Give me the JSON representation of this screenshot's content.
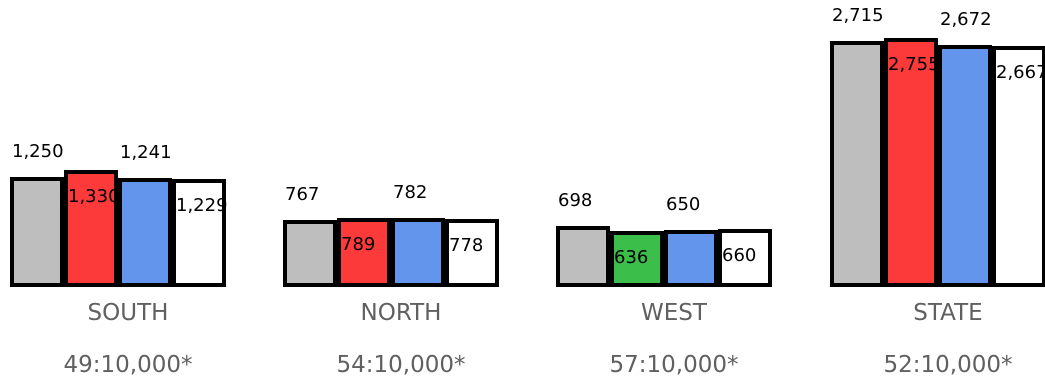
{
  "colors": {
    "grey": "#bebebe",
    "red": "#fc3a3a",
    "blue": "#6495ed",
    "white": "#ffffff",
    "green": "#3cbf4a"
  },
  "chart_data": {
    "type": "bar",
    "grid": false,
    "legend": "none",
    "groups": [
      {
        "name": "SOUTH",
        "ratio": "49:10,000*",
        "bars": [
          {
            "value": 1250,
            "label": "1,250",
            "color": "grey"
          },
          {
            "value": 1330,
            "label": "1,330",
            "color": "red"
          },
          {
            "value": 1241,
            "label": "1,241",
            "color": "blue"
          },
          {
            "value": 1229,
            "label": "1,229",
            "color": "white"
          }
        ]
      },
      {
        "name": "NORTH",
        "ratio": "54:10,000*",
        "bars": [
          {
            "value": 767,
            "label": "767",
            "color": "grey"
          },
          {
            "value": 789,
            "label": "789",
            "color": "red"
          },
          {
            "value": 782,
            "label": "782",
            "color": "blue"
          },
          {
            "value": 778,
            "label": "778",
            "color": "white"
          }
        ]
      },
      {
        "name": "WEST",
        "ratio": "57:10,000*",
        "bars": [
          {
            "value": 698,
            "label": "698",
            "color": "grey"
          },
          {
            "value": 636,
            "label": "636",
            "color": "green"
          },
          {
            "value": 650,
            "label": "650",
            "color": "blue"
          },
          {
            "value": 660,
            "label": "660",
            "color": "white"
          }
        ]
      },
      {
        "name": "STATE",
        "ratio": "52:10,000*",
        "bars": [
          {
            "value": 2715,
            "label": "2,715",
            "color": "grey"
          },
          {
            "value": 2755,
            "label": "2,755",
            "color": "red"
          },
          {
            "value": 2672,
            "label": "2,672",
            "color": "blue"
          },
          {
            "value": 2667,
            "label": "2,667",
            "color": "white"
          }
        ]
      }
    ]
  }
}
